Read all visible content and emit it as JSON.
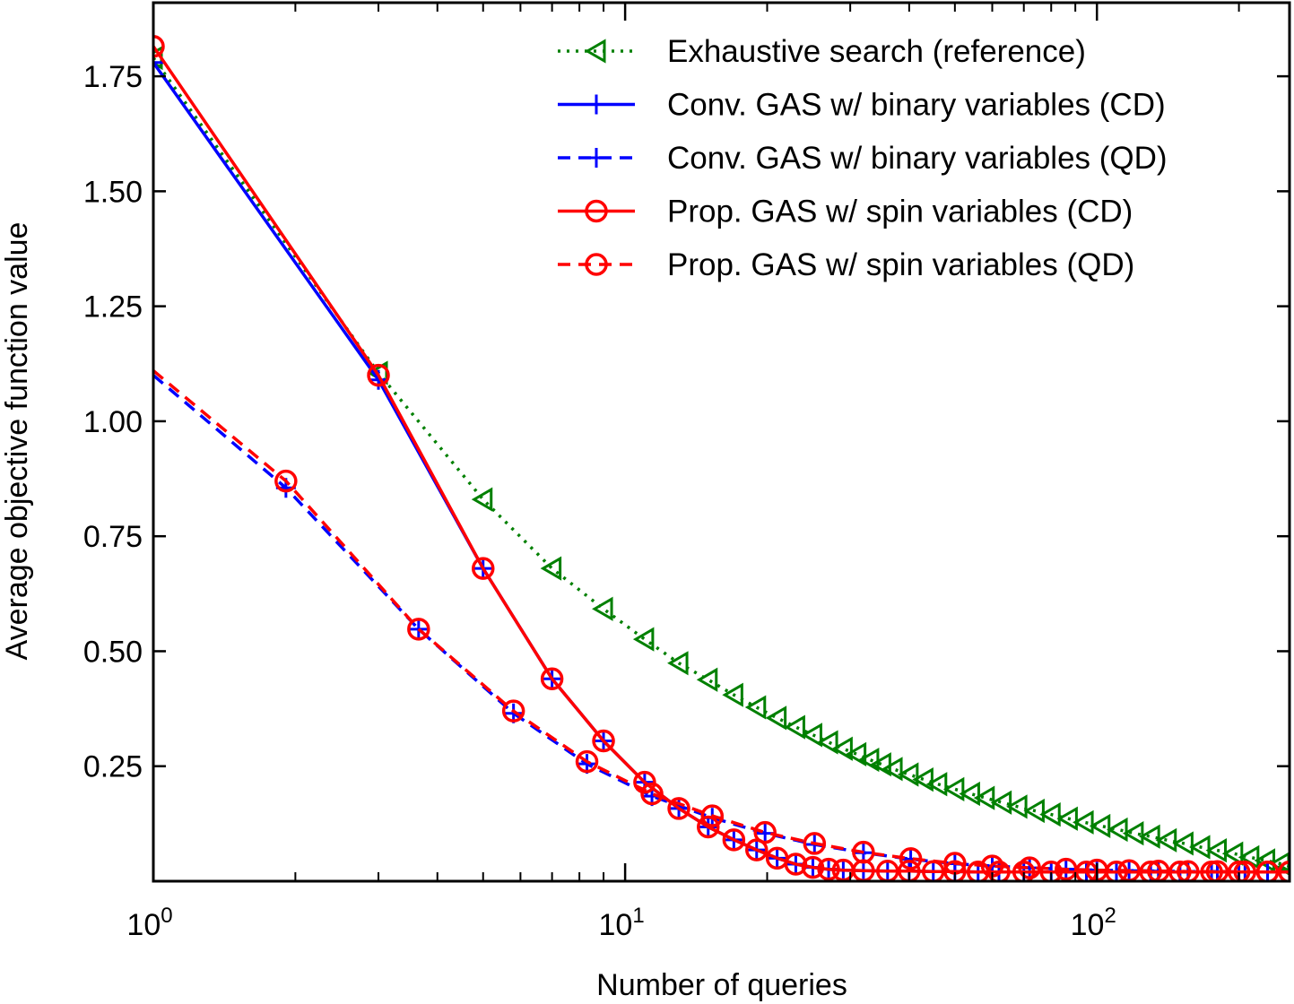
{
  "chart_data": {
    "type": "line",
    "xlabel": "Number of queries",
    "ylabel": "Average objective function value",
    "xscale": "log",
    "xlim": [
      1,
      256
    ],
    "ylim": [
      0,
      1.91
    ],
    "x_ticks": [
      {
        "value": 1,
        "base": "10",
        "exp": "0"
      },
      {
        "value": 10,
        "base": "10",
        "exp": "1"
      },
      {
        "value": 100,
        "base": "10",
        "exp": "2"
      }
    ],
    "y_ticks": [
      {
        "value": 0.25,
        "label": "0.25"
      },
      {
        "value": 0.5,
        "label": "0.50"
      },
      {
        "value": 0.75,
        "label": "0.75"
      },
      {
        "value": 1.0,
        "label": "1.00"
      },
      {
        "value": 1.25,
        "label": "1.25"
      },
      {
        "value": 1.5,
        "label": "1.50"
      },
      {
        "value": 1.75,
        "label": "1.75"
      }
    ],
    "legend_position": "top-right",
    "grid": false,
    "series": [
      {
        "name": "Exhaustive search (reference)",
        "color": "#008000",
        "dash": "dotted",
        "marker": "triangle-left",
        "marker_points": [
          [
            1,
            1.79
          ],
          [
            3,
            1.105
          ],
          [
            5,
            0.83
          ],
          [
            7,
            0.68
          ],
          [
            9,
            0.592
          ],
          [
            11,
            0.526
          ],
          [
            13,
            0.474
          ],
          [
            15,
            0.438
          ],
          [
            17,
            0.405
          ],
          [
            19,
            0.378
          ],
          [
            21,
            0.355
          ],
          [
            23,
            0.335
          ],
          [
            25,
            0.318
          ],
          [
            27,
            0.302
          ],
          [
            29,
            0.288
          ],
          [
            31,
            0.276
          ],
          [
            33,
            0.264
          ],
          [
            35,
            0.254
          ],
          [
            37,
            0.244
          ],
          [
            40,
            0.232
          ],
          [
            43,
            0.221
          ],
          [
            46,
            0.211
          ],
          [
            50,
            0.2
          ],
          [
            54,
            0.19
          ],
          [
            58,
            0.181
          ],
          [
            63,
            0.171
          ],
          [
            68,
            0.162
          ],
          [
            74,
            0.153
          ],
          [
            80,
            0.145
          ],
          [
            87,
            0.136
          ],
          [
            94,
            0.128
          ],
          [
            102,
            0.12
          ],
          [
            111,
            0.112
          ],
          [
            120,
            0.104
          ],
          [
            130,
            0.097
          ],
          [
            141,
            0.089
          ],
          [
            153,
            0.082
          ],
          [
            166,
            0.074
          ],
          [
            180,
            0.067
          ],
          [
            195,
            0.06
          ],
          [
            211,
            0.052
          ],
          [
            228,
            0.045
          ],
          [
            245,
            0.038
          ],
          [
            256,
            0.033
          ]
        ]
      },
      {
        "name": "Conv. GAS w/ binary variables (CD)",
        "color": "#0000ff",
        "dash": "solid",
        "marker": "plus",
        "marker_points": [
          [
            1,
            1.78
          ],
          [
            3,
            1.09
          ],
          [
            5,
            0.68
          ],
          [
            7,
            0.44
          ],
          [
            9,
            0.305
          ],
          [
            11,
            0.215
          ],
          [
            13,
            0.158
          ],
          [
            15,
            0.118
          ],
          [
            17,
            0.09
          ],
          [
            19,
            0.068
          ],
          [
            21,
            0.05
          ],
          [
            23,
            0.037
          ],
          [
            25,
            0.03
          ],
          [
            27,
            0.026
          ],
          [
            29,
            0.024
          ],
          [
            32,
            0.023
          ],
          [
            36,
            0.022
          ],
          [
            40,
            0.022
          ],
          [
            45,
            0.021
          ],
          [
            50,
            0.021
          ],
          [
            56,
            0.02
          ],
          [
            62,
            0.02
          ],
          [
            70,
            0.02
          ],
          [
            80,
            0.02
          ],
          [
            95,
            0.02
          ],
          [
            110,
            0.02
          ],
          [
            130,
            0.02
          ],
          [
            150,
            0.02
          ],
          [
            175,
            0.02
          ],
          [
            200,
            0.02
          ],
          [
            230,
            0.02
          ],
          [
            256,
            0.02
          ]
        ]
      },
      {
        "name": "Conv. GAS w/ binary variables (QD)",
        "color": "#0000ff",
        "dash": "dashed",
        "marker": "plus",
        "line_start": [
          1,
          1.1
        ],
        "marker_points": [
          [
            1.91,
            0.855
          ],
          [
            3.65,
            0.548
          ],
          [
            5.8,
            0.365
          ],
          [
            8.3,
            0.255
          ],
          [
            11.4,
            0.185
          ],
          [
            15.3,
            0.138
          ],
          [
            19.8,
            0.104
          ],
          [
            25.2,
            0.08
          ],
          [
            32,
            0.062
          ],
          [
            40.3,
            0.048
          ],
          [
            50,
            0.038
          ],
          [
            60,
            0.033
          ],
          [
            72,
            0.029
          ],
          [
            86,
            0.026
          ],
          [
            100,
            0.024
          ],
          [
            117,
            0.023
          ],
          [
            135,
            0.022
          ],
          [
            156,
            0.021
          ],
          [
            180,
            0.021
          ],
          [
            206,
            0.02
          ],
          [
            230,
            0.02
          ],
          [
            256,
            0.02
          ]
        ]
      },
      {
        "name": "Prop. GAS w/ spin variables (CD)",
        "color": "#ff0000",
        "dash": "solid",
        "marker": "circle",
        "marker_points": [
          [
            1,
            1.815
          ],
          [
            3,
            1.1
          ],
          [
            5,
            0.68
          ],
          [
            7,
            0.44
          ],
          [
            9,
            0.305
          ],
          [
            11,
            0.215
          ],
          [
            13,
            0.158
          ],
          [
            15,
            0.118
          ],
          [
            17,
            0.09
          ],
          [
            19,
            0.068
          ],
          [
            21,
            0.05
          ],
          [
            23,
            0.037
          ],
          [
            25,
            0.03
          ],
          [
            27,
            0.026
          ],
          [
            29,
            0.024
          ],
          [
            32,
            0.023
          ],
          [
            36,
            0.022
          ],
          [
            40,
            0.022
          ],
          [
            45,
            0.021
          ],
          [
            50,
            0.021
          ],
          [
            56,
            0.02
          ],
          [
            62,
            0.02
          ],
          [
            70,
            0.02
          ],
          [
            80,
            0.02
          ],
          [
            95,
            0.02
          ],
          [
            110,
            0.02
          ],
          [
            130,
            0.02
          ],
          [
            150,
            0.02
          ],
          [
            175,
            0.02
          ],
          [
            200,
            0.02
          ],
          [
            230,
            0.02
          ],
          [
            256,
            0.02
          ]
        ]
      },
      {
        "name": "Prop. GAS w/ spin variables (QD)",
        "color": "#ff0000",
        "dash": "dashed",
        "marker": "circle",
        "line_start": [
          1,
          1.11
        ],
        "marker_points": [
          [
            1.91,
            0.87
          ],
          [
            3.65,
            0.548
          ],
          [
            5.8,
            0.37
          ],
          [
            8.3,
            0.26
          ],
          [
            11.4,
            0.19
          ],
          [
            15.3,
            0.142
          ],
          [
            19.8,
            0.106
          ],
          [
            25.2,
            0.082
          ],
          [
            32,
            0.063
          ],
          [
            40.3,
            0.049
          ],
          [
            50,
            0.039
          ],
          [
            60,
            0.033
          ],
          [
            72,
            0.029
          ],
          [
            86,
            0.026
          ],
          [
            100,
            0.024
          ],
          [
            117,
            0.023
          ],
          [
            135,
            0.022
          ],
          [
            156,
            0.021
          ],
          [
            180,
            0.021
          ],
          [
            206,
            0.02
          ],
          [
            230,
            0.02
          ],
          [
            256,
            0.02
          ]
        ]
      }
    ]
  }
}
